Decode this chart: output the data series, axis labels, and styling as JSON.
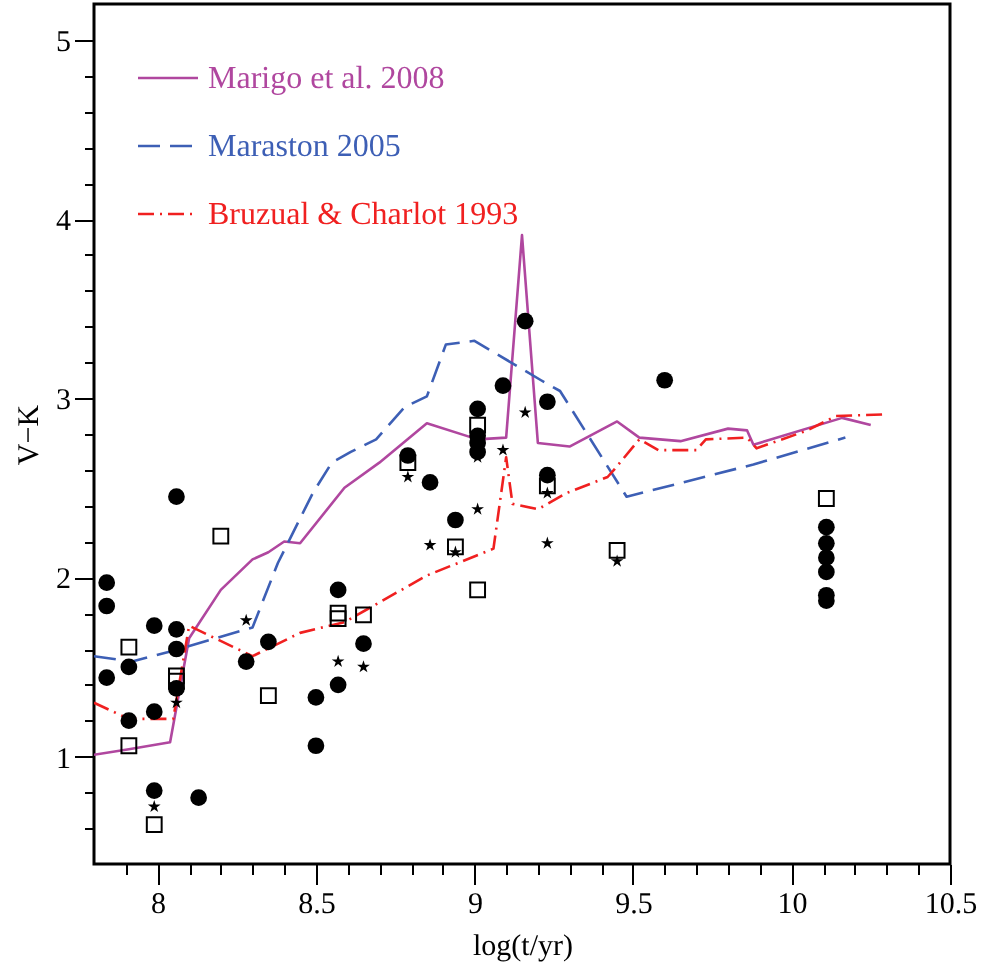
{
  "chart_data": {
    "type": "line",
    "xlabel": "log(t/yr)",
    "ylabel": "V−K",
    "xlim": [
      7.8,
      10.5
    ],
    "ylim": [
      0.4,
      5.2
    ],
    "xticks": [
      {
        "value": 7.9,
        "label": null
      },
      8,
      {
        "value": 8.1,
        "label": null
      },
      {
        "value": 8.2,
        "label": null
      },
      {
        "value": 8.3,
        "label": null
      },
      {
        "value": 8.4,
        "label": null
      },
      8.5,
      {
        "value": 8.6,
        "label": null
      },
      {
        "value": 8.7,
        "label": null
      },
      {
        "value": 8.8,
        "label": null
      },
      {
        "value": 8.9,
        "label": null
      },
      9,
      {
        "value": 9.1,
        "label": null
      },
      {
        "value": 9.2,
        "label": null
      },
      {
        "value": 9.3,
        "label": null
      },
      {
        "value": 9.4,
        "label": null
      },
      9.5,
      {
        "value": 9.6,
        "label": null
      },
      {
        "value": 9.7,
        "label": null
      },
      {
        "value": 9.8,
        "label": null
      },
      {
        "value": 9.9,
        "label": null
      },
      10,
      {
        "value": 10.1,
        "label": null
      },
      {
        "value": 10.2,
        "label": null
      },
      {
        "value": 10.3,
        "label": null
      },
      {
        "value": 10.4,
        "label": null
      },
      10.5
    ],
    "yticks": [
      {
        "value": 0.6,
        "label": null
      },
      {
        "value": 0.8,
        "label": null
      },
      1,
      {
        "value": 1.2,
        "label": null
      },
      {
        "value": 1.4,
        "label": null
      },
      {
        "value": 1.6,
        "label": null
      },
      {
        "value": 1.8,
        "label": null
      },
      2,
      {
        "value": 2.2,
        "label": null
      },
      {
        "value": 2.4,
        "label": null
      },
      {
        "value": 2.6,
        "label": null
      },
      {
        "value": 2.8,
        "label": null
      },
      3,
      {
        "value": 3.2,
        "label": null
      },
      {
        "value": 3.4,
        "label": null
      },
      {
        "value": 3.6,
        "label": null
      },
      {
        "value": 3.8,
        "label": null
      },
      4,
      {
        "value": 4.2,
        "label": null
      },
      {
        "value": 4.4,
        "label": null
      },
      {
        "value": 4.6,
        "label": null
      },
      {
        "value": 4.8,
        "label": null
      },
      5
    ],
    "grid": false,
    "legend": "top left",
    "series": [
      {
        "name": "Marigo et al. 2008",
        "type": "line",
        "color": "#b0479f",
        "line_style": "solid",
        "x": [
          7.8,
          7.91,
          8.04,
          8.1,
          8.2,
          8.3,
          8.35,
          8.4,
          8.45,
          8.59,
          8.7,
          8.85,
          9.01,
          9.1,
          9.15,
          9.2,
          9.3,
          9.45,
          9.52,
          9.65,
          9.8,
          9.86,
          9.88,
          10.16,
          10.25
        ],
        "values": [
          1.01,
          1.04,
          1.08,
          1.66,
          1.93,
          2.1,
          2.14,
          2.2,
          2.19,
          2.5,
          2.64,
          2.86,
          2.77,
          2.78,
          3.91,
          2.75,
          2.73,
          2.87,
          2.78,
          2.76,
          2.83,
          2.82,
          2.74,
          2.89,
          2.85
        ]
      },
      {
        "name": "Maraston 2005",
        "type": "line",
        "color": "#3d5fb5",
        "line_style": "dashed",
        "x": [
          7.8,
          7.92,
          8.05,
          8.3,
          8.38,
          8.49,
          8.55,
          8.61,
          8.69,
          8.78,
          8.85,
          8.91,
          9.0,
          9.21,
          9.27,
          9.48,
          9.88,
          10.17
        ],
        "values": [
          1.56,
          1.53,
          1.59,
          1.72,
          2.08,
          2.47,
          2.64,
          2.7,
          2.77,
          2.95,
          3.01,
          3.3,
          3.32,
          3.1,
          3.04,
          2.45,
          2.63,
          2.78
        ]
      },
      {
        "name": "Bruzual & Charlot 1993",
        "type": "line",
        "color": "#f02020",
        "line_style": "dashdot",
        "x": [
          7.8,
          7.91,
          8.05,
          8.1,
          8.17,
          8.3,
          8.45,
          8.59,
          8.7,
          8.85,
          9.06,
          9.1,
          9.12,
          9.2,
          9.29,
          9.42,
          9.44,
          9.52,
          9.58,
          9.7,
          9.73,
          9.86,
          9.89,
          10.05,
          10.14,
          10.3
        ],
        "values": [
          1.3,
          1.21,
          1.21,
          1.73,
          1.67,
          1.56,
          1.69,
          1.75,
          1.86,
          2.01,
          2.16,
          2.67,
          2.41,
          2.38,
          2.47,
          2.56,
          2.6,
          2.77,
          2.71,
          2.71,
          2.77,
          2.78,
          2.72,
          2.82,
          2.9,
          2.91
        ]
      },
      {
        "type": "scatter",
        "marker": "circle",
        "color": "#000000",
        "x": [
          8.06,
          7.84,
          7.84,
          7.99,
          8.06,
          8.06,
          7.91,
          7.84,
          8.06,
          7.91,
          7.99,
          7.99,
          8.13,
          8.28,
          8.35,
          8.5,
          8.5,
          8.57,
          8.57,
          8.65,
          8.79,
          8.86,
          8.94,
          9.01,
          9.01,
          9.01,
          9.01,
          9.09,
          9.16,
          9.23,
          9.6,
          9.23,
          10.11,
          10.11,
          10.11,
          10.11,
          10.11,
          10.11
        ],
        "values": [
          2.45,
          1.97,
          1.84,
          1.73,
          1.71,
          1.6,
          1.5,
          1.44,
          1.38,
          1.2,
          1.25,
          0.81,
          0.77,
          1.53,
          1.64,
          1.33,
          1.06,
          1.93,
          1.4,
          1.63,
          2.68,
          2.53,
          2.32,
          2.94,
          2.79,
          2.75,
          2.7,
          3.07,
          3.43,
          2.98,
          3.1,
          2.57,
          2.28,
          2.19,
          2.11,
          2.03,
          1.9,
          1.87
        ]
      },
      {
        "type": "scatter",
        "marker": "square",
        "color": "#000000",
        "x": [
          8.2,
          7.91,
          8.06,
          8.06,
          7.91,
          7.99,
          8.35,
          8.57,
          8.57,
          8.65,
          8.79,
          8.94,
          9.01,
          9.01,
          9.23,
          9.45,
          10.11
        ],
        "values": [
          2.23,
          1.61,
          1.45,
          1.42,
          1.06,
          0.62,
          1.34,
          1.8,
          1.77,
          1.79,
          2.64,
          2.17,
          1.93,
          2.85,
          2.51,
          2.15,
          2.44
        ]
      },
      {
        "type": "scatter",
        "marker": "star",
        "color": "#000000",
        "x": [
          7.99,
          8.06,
          8.28,
          8.57,
          8.65,
          8.86,
          8.94,
          9.01,
          8.79,
          9.01,
          9.09,
          9.16,
          9.23,
          9.23,
          9.45
        ],
        "values": [
          0.72,
          1.3,
          1.76,
          1.53,
          1.5,
          2.18,
          2.14,
          2.38,
          2.56,
          2.67,
          2.71,
          2.92,
          2.47,
          2.19,
          2.09
        ]
      }
    ]
  }
}
